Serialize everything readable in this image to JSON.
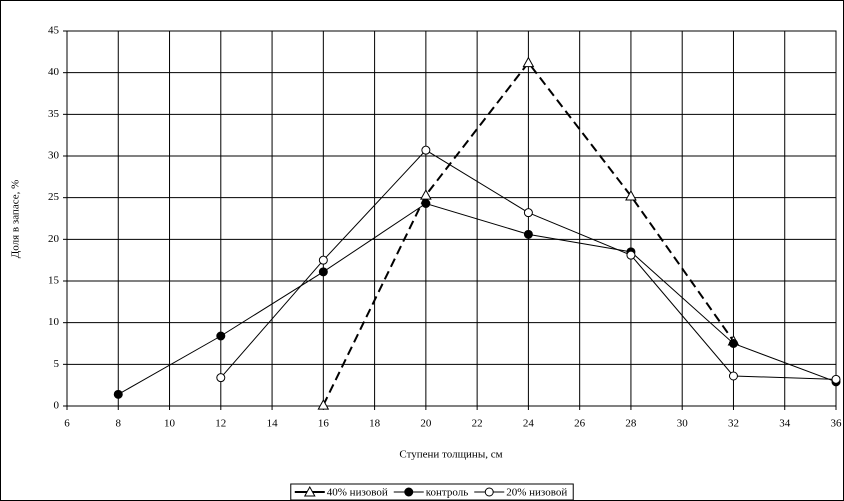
{
  "chart_data": {
    "type": "line",
    "x_label": "Ступени толщины, см",
    "y_label": "Доля в запасе, %",
    "xlim": [
      6,
      36
    ],
    "xticks": [
      6,
      8,
      10,
      12,
      14,
      16,
      18,
      20,
      22,
      24,
      26,
      28,
      30,
      32,
      34,
      36
    ],
    "ylim": [
      0,
      45
    ],
    "yticks": [
      0,
      5,
      10,
      15,
      20,
      25,
      30,
      35,
      40,
      45
    ],
    "grid": true,
    "legend": "bottom",
    "series": [
      {
        "name": "40% низовой",
        "color": "#000000",
        "dash": true,
        "marker": "triangle-open",
        "x": [
          16,
          20,
          24,
          28,
          32
        ],
        "values": [
          0.1,
          25.3,
          41.2,
          25.2,
          7.8
        ]
      },
      {
        "name": "контроль",
        "color": "#000000",
        "dash": false,
        "marker": "circle-filled",
        "x": [
          8,
          12,
          16,
          20,
          24,
          28,
          32,
          36
        ],
        "values": [
          1.4,
          8.4,
          16.1,
          24.3,
          20.6,
          18.5,
          7.5,
          2.9
        ]
      },
      {
        "name": "20% низовой",
        "color": "#000000",
        "dash": false,
        "marker": "circle-open",
        "x": [
          12,
          16,
          20,
          24,
          28,
          32,
          36
        ],
        "values": [
          3.4,
          17.5,
          30.7,
          23.2,
          18.1,
          3.6,
          3.2
        ]
      }
    ]
  }
}
